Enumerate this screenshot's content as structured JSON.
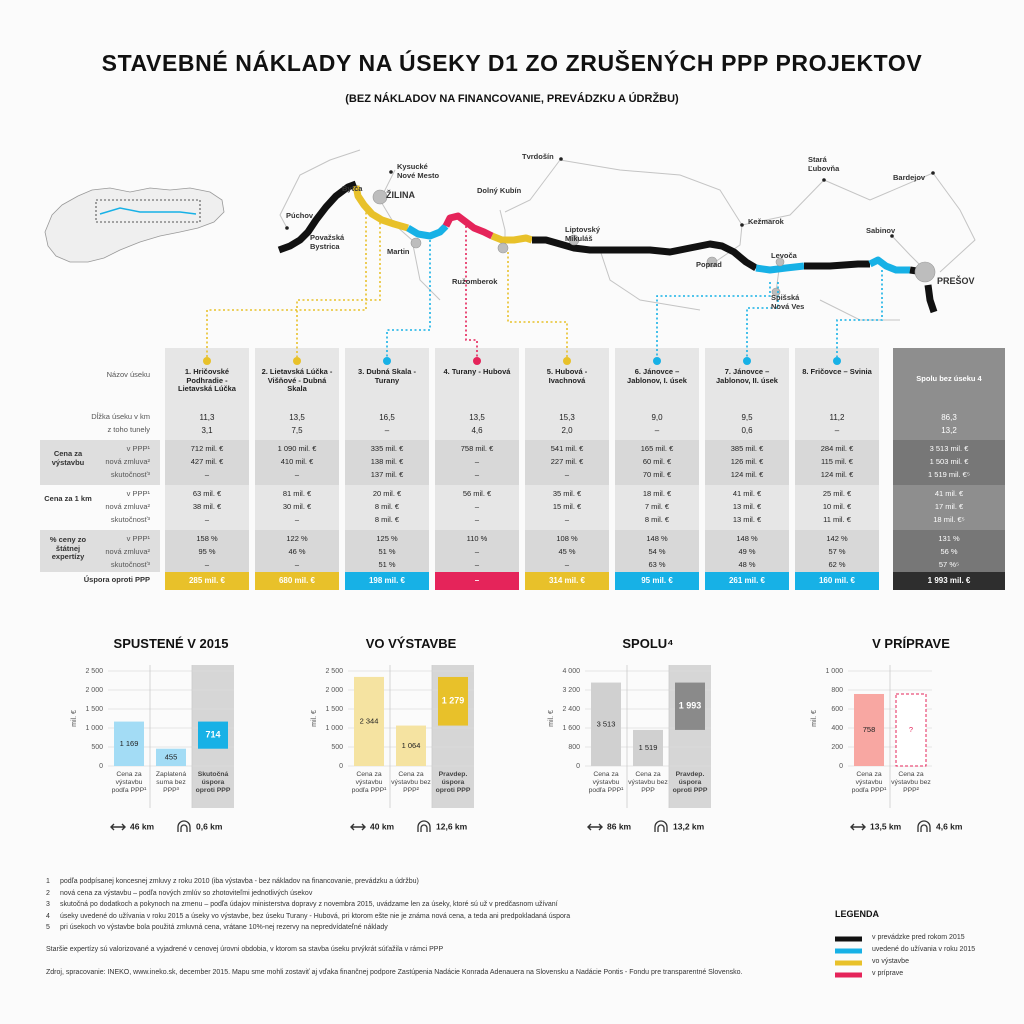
{
  "header": {
    "title": "STAVEBNÉ NÁKLADY NA ÚSEKY D1 ZO ZRUŠENÝCH PPP PROJEKTOV",
    "subtitle": "(BEZ NÁKLADOV NA FINANCOVANIE, PREVÁDZKU A ÚDRŽBU)"
  },
  "map": {
    "cities": [
      "Tvrdošín",
      "Kysucké Nové Mesto",
      "Stará Ľubovňa",
      "Bardejov",
      "Bytča",
      "ŽILINA",
      "Dolný Kubín",
      "Púchov",
      "Kežmarok",
      "Sabinov",
      "Považská Bystrica",
      "Martin",
      "Liptovský Mikuláš",
      "Ružomberok",
      "Poprad",
      "Levoča",
      "PREŠOV",
      "Spišská Nová Ves"
    ]
  },
  "table": {
    "labels": {
      "name": "Názov úseku",
      "length": "Dĺžka úseku v km",
      "tunnels": "z toho tunely",
      "groups": [
        {
          "title": "Cena za výstavbu",
          "subs": [
            "v PPP¹",
            "nová zmluva²",
            "skutočnosť³"
          ]
        },
        {
          "title": "Cena za 1 km",
          "subs": [
            "v PPP¹",
            "nová zmluva²",
            "skutočnosť³"
          ]
        },
        {
          "title": "% ceny zo štátnej expertízy",
          "subs": [
            "v PPP¹",
            "nová zmluva²",
            "skutočnosť³"
          ]
        }
      ],
      "saving": "Úspora oproti PPP"
    },
    "columns": [
      {
        "name": "1. Hričovské Podhradie - Lietavská Lúčka",
        "color": "#e8c12a",
        "length": "11,3",
        "tunnels": "3,1",
        "groups": [
          [
            "712 mil. €",
            "427 mil. €",
            "–"
          ],
          [
            "63 mil. €",
            "38 mil. €",
            "–"
          ],
          [
            "158 %",
            "95 %",
            "–"
          ]
        ],
        "saving": "285 mil. €"
      },
      {
        "name": "2. Lietavská Lúčka - Višňové - Dubná Skala",
        "color": "#e8c12a",
        "length": "13,5",
        "tunnels": "7,5",
        "groups": [
          [
            "1 090 mil. €",
            "410 mil. €",
            "–"
          ],
          [
            "81 mil. €",
            "30 mil. €",
            "–"
          ],
          [
            "122 %",
            "46 %",
            "–"
          ]
        ],
        "saving": "680 mil. €"
      },
      {
        "name": "3. Dubná Skala - Turany",
        "color": "#17b1e6",
        "length": "16,5",
        "tunnels": "–",
        "groups": [
          [
            "335 mil. €",
            "138 mil. €",
            "137 mil. €"
          ],
          [
            "20 mil. €",
            "8 mil. €",
            "8 mil. €"
          ],
          [
            "125 %",
            "51 %",
            "51 %"
          ]
        ],
        "saving": "198 mil. €"
      },
      {
        "name": "4. Turany - Hubová",
        "color": "#e5245a",
        "length": "13,5",
        "tunnels": "4,6",
        "groups": [
          [
            "758 mil. €",
            "–",
            "–"
          ],
          [
            "56 mil. €",
            "–",
            "–"
          ],
          [
            "110 %",
            "–",
            "–"
          ]
        ],
        "saving": "–"
      },
      {
        "name": "5. Hubová - Ivachnová",
        "color": "#e8c12a",
        "length": "15,3",
        "tunnels": "2,0",
        "groups": [
          [
            "541 mil. €",
            "227 mil. €",
            "–"
          ],
          [
            "35 mil. €",
            "15 mil. €",
            "–"
          ],
          [
            "108 %",
            "45 %",
            "–"
          ]
        ],
        "saving": "314 mil. €"
      },
      {
        "name": "6. Jánovce – Jablonov, I. úsek",
        "color": "#17b1e6",
        "length": "9,0",
        "tunnels": "–",
        "groups": [
          [
            "165 mil. €",
            "60 mil. €",
            "70 mil. €"
          ],
          [
            "18 mil. €",
            "7 mil. €",
            "8 mil. €"
          ],
          [
            "148 %",
            "54 %",
            "63 %"
          ]
        ],
        "saving": "95 mil. €"
      },
      {
        "name": "7. Jánovce – Jablonov, II. úsek",
        "color": "#17b1e6",
        "length": "9,5",
        "tunnels": "0,6",
        "groups": [
          [
            "385 mil. €",
            "126 mil. €",
            "124 mil. €"
          ],
          [
            "41 mil. €",
            "13 mil. €",
            "13 mil. €"
          ],
          [
            "148 %",
            "49 %",
            "48 %"
          ]
        ],
        "saving": "261 mil. €"
      },
      {
        "name": "8. Fričovce – Svinia",
        "color": "#17b1e6",
        "length": "11,2",
        "tunnels": "–",
        "groups": [
          [
            "284 mil. €",
            "115 mil. €",
            "124 mil. €"
          ],
          [
            "25 mil. €",
            "10 mil. €",
            "11 mil. €"
          ],
          [
            "142 %",
            "57 %",
            "62 %"
          ]
        ],
        "saving": "160 mil. €"
      },
      {
        "name": "Spolu bez úseku 4",
        "color": "#2e2e2e",
        "length": "86,3",
        "tunnels": "13,2",
        "groups": [
          [
            "3 513 mil. €",
            "1 503 mil. €",
            "1 519 mil. €⁵"
          ],
          [
            "41 mil. €",
            "17 mil. €",
            "18 mil. €⁵"
          ],
          [
            "131 %",
            "56 %",
            "57 %⁵"
          ]
        ],
        "saving": "1 993 mil. €"
      }
    ]
  },
  "charts": [
    {
      "type": "bar",
      "title": "SPUSTENÉ V 2015",
      "ylabel": "mil. €",
      "ylim": [
        0,
        2500
      ],
      "yticks": [
        0,
        500,
        {
          "value": 1000,
          "label": "1 000"
        },
        {
          "value": 1500,
          "label": "1 500"
        },
        {
          "value": 2000,
          "label": "2 000"
        },
        {
          "value": 2500,
          "label": "2 500"
        }
      ],
      "categories": [
        "Cena za výstavbu podľa PPP¹",
        "Zaplatená suma bez PPP³",
        "Skutočná úspora oproti PPP"
      ],
      "values": [
        1169,
        455,
        714
      ],
      "value_labels": [
        "1 169",
        "455",
        "714"
      ],
      "colors": [
        "#a3dcf5",
        "#a3dcf5",
        "#17b1e6"
      ],
      "length": "46 km",
      "tunnels": "0,6 km"
    },
    {
      "type": "bar",
      "title": "VO VÝSTAVBE",
      "ylabel": "mil. €",
      "ylim": [
        0,
        2500
      ],
      "yticks": [
        0,
        500,
        {
          "value": 1000,
          "label": "1 000"
        },
        {
          "value": 1500,
          "label": "1 500"
        },
        {
          "value": 2000,
          "label": "2 000"
        },
        {
          "value": 2500,
          "label": "2 500"
        }
      ],
      "categories": [
        "Cena za výstavbu podľa PPP¹",
        "Cena za výstavbu bez PPP²",
        "Pravdep. úspora oproti PPP"
      ],
      "values": [
        2344,
        1064,
        1279
      ],
      "value_labels": [
        "2 344",
        "1 064",
        "1 279"
      ],
      "colors": [
        "#f5e3a1",
        "#f5e3a1",
        "#e8c12a"
      ],
      "length": "40 km",
      "tunnels": "12,6 km"
    },
    {
      "type": "bar",
      "title": "SPOLU⁴",
      "ylabel": "mil. €",
      "ylim": [
        0,
        4000
      ],
      "yticks": [
        0,
        800,
        {
          "value": 1600,
          "label": "1 600"
        },
        {
          "value": 2400,
          "label": "2 400"
        },
        {
          "value": 3200,
          "label": "3 200"
        },
        {
          "value": 4000,
          "label": "4 000"
        }
      ],
      "categories": [
        "Cena za výstavbu podľa PPP¹",
        "Cena za výstavbu bez PPP",
        "Pravdep. úspora oproti PPP"
      ],
      "values": [
        3513,
        1519,
        1993
      ],
      "value_labels": [
        "3 513",
        "1 519",
        "1 993"
      ],
      "colors": [
        "#d0d0d0",
        "#d0d0d0",
        "#8a8a8a"
      ],
      "length": "86 km",
      "tunnels": "13,2 km"
    },
    {
      "type": "bar",
      "title": "V PRÍPRAVE",
      "ylabel": "mil. €",
      "ylim": [
        0,
        1000
      ],
      "yticks": [
        0,
        200,
        400,
        600,
        800,
        {
          "value": 1000,
          "label": "1 000"
        }
      ],
      "categories": [
        "Cena za výstavbu podľa PPP¹",
        "Cena za výstavbu bez PPP²"
      ],
      "values": [
        758,
        null
      ],
      "value_labels": [
        "758",
        "?"
      ],
      "colors": [
        "#f8a7a2",
        "#e5245a"
      ],
      "length": "13,5 km",
      "tunnels": "4,6 km"
    }
  ],
  "footnotes": [
    {
      "num": "1",
      "text": "podľa podpísanej koncesnej zmluvy z roku 2010 (iba výstavba - bez nákladov na financovanie, prevádzku a údržbu)"
    },
    {
      "num": "2",
      "text": "nová cena za výstavbu – podľa nových zmlúv so zhotoviteľmi jednotlivých úsekov"
    },
    {
      "num": "3",
      "text": "skutočná po dodatkoch a pokynoch na zmenu – podľa údajov ministerstva dopravy z novembra 2015, uvádzame len za úseky, ktoré sú už v predčasnom užívaní"
    },
    {
      "num": "4",
      "text": "úseky uvedené do užívania v roku 2015 a úseky vo výstavbe, bez úseku Turany - Hubová, pri ktorom ešte nie je známa nová cena, a teda ani predpokladaná úspora"
    },
    {
      "num": "5",
      "text": "pri úsekoch vo výstavbe bola použitá zmluvná cena, vrátane 10%-nej rezervy na nepredvídateľné náklady"
    }
  ],
  "note": "Staršie expertízy sú valorizované a vyjadrené v cenovej úrovni obdobia, v ktorom sa stavba úseku prvýkrát súťažila v rámci PPP",
  "source": "Zdroj, spracovanie: INEKO, www.ineko.sk, december 2015. Mapu sme mohli zostaviť aj vďaka finančnej podpore Zastúpenia Nadácie Konrada Adenauera na Slovensku a Nadácie Pontis - Fondu pre transparentné Slovensko.",
  "legend": {
    "title": "LEGENDA",
    "items": [
      {
        "label": "v prevádzke pred rokom 2015",
        "color": "#111111"
      },
      {
        "label": "uvedené do užívania v roku 2015",
        "color": "#17b1e6"
      },
      {
        "label": "vo výstavbe",
        "color": "#e8c12a"
      },
      {
        "label": "v príprave",
        "color": "#e5245a"
      }
    ]
  }
}
